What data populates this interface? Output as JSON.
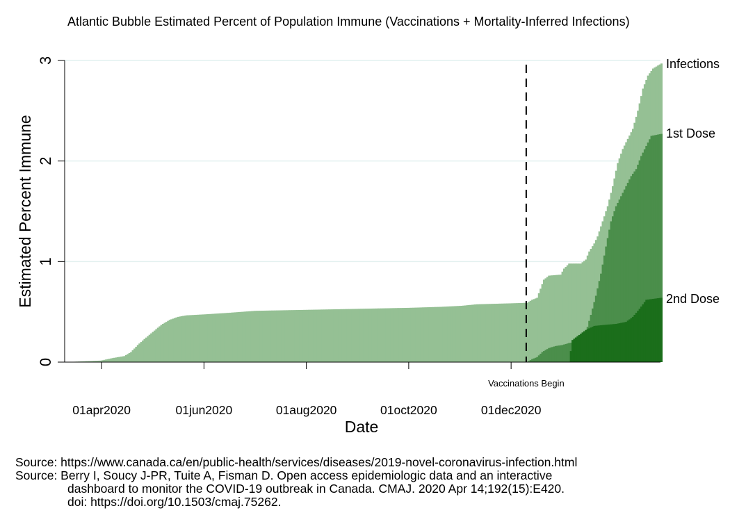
{
  "chart_data": {
    "type": "area",
    "title": "Atlantic Bubble Estimated Percent of Population Immune (Vaccinations + Mortality-Inferred Infections)",
    "xlabel": "Date",
    "ylabel": "Estimated Percent Immune",
    "x_ticks": [
      "2020-04-01",
      "2020-06-01",
      "2020-08-01",
      "2020-10-01",
      "2020-12-01"
    ],
    "x_tick_labels": [
      "01apr2020",
      "01jun2020",
      "01aug2020",
      "01oct2020",
      "01dec2020"
    ],
    "x_range": [
      "2020-03-10",
      "2021-02-28"
    ],
    "y_ticks": [
      0,
      1,
      2,
      3
    ],
    "ylim": [
      0,
      3
    ],
    "grid": true,
    "vertical_line": {
      "date": "2020-12-10",
      "style": "dashed",
      "label": "Vaccinations Begin"
    },
    "series": [
      {
        "name": "Infections",
        "color": "#95c094",
        "points": [
          [
            "2020-03-10",
            0
          ],
          [
            "2020-03-24",
            0.01
          ],
          [
            "2020-03-31",
            0.015
          ],
          [
            "2020-04-07",
            0.04
          ],
          [
            "2020-04-14",
            0.06
          ],
          [
            "2020-04-18",
            0.1
          ],
          [
            "2020-04-22",
            0.17
          ],
          [
            "2020-04-26",
            0.23
          ],
          [
            "2020-05-01",
            0.3
          ],
          [
            "2020-05-06",
            0.37
          ],
          [
            "2020-05-11",
            0.42
          ],
          [
            "2020-05-16",
            0.45
          ],
          [
            "2020-05-21",
            0.465
          ],
          [
            "2020-06-01",
            0.475
          ],
          [
            "2020-06-15",
            0.49
          ],
          [
            "2020-07-01",
            0.51
          ],
          [
            "2020-08-01",
            0.52
          ],
          [
            "2020-09-01",
            0.53
          ],
          [
            "2020-10-01",
            0.54
          ],
          [
            "2020-10-20",
            0.55
          ],
          [
            "2020-11-01",
            0.56
          ],
          [
            "2020-11-10",
            0.575
          ],
          [
            "2020-12-01",
            0.585
          ],
          [
            "2020-12-10",
            0.59
          ],
          [
            "2020-12-13",
            0.62
          ],
          [
            "2020-12-16",
            0.64
          ],
          [
            "2020-12-20",
            0.82
          ],
          [
            "2020-12-23",
            0.86
          ],
          [
            "2020-12-30",
            0.87
          ],
          [
            "2021-01-01",
            0.93
          ],
          [
            "2021-01-04",
            0.98
          ],
          [
            "2021-01-11",
            0.98
          ],
          [
            "2021-01-14",
            1.02
          ],
          [
            "2021-01-16",
            1.1
          ],
          [
            "2021-01-19",
            1.18
          ],
          [
            "2021-01-21",
            1.25
          ],
          [
            "2021-01-24",
            1.4
          ],
          [
            "2021-01-27",
            1.55
          ],
          [
            "2021-01-30",
            1.75
          ],
          [
            "2021-02-02",
            1.98
          ],
          [
            "2021-02-05",
            2.12
          ],
          [
            "2021-02-08",
            2.22
          ],
          [
            "2021-02-11",
            2.32
          ],
          [
            "2021-02-14",
            2.5
          ],
          [
            "2021-02-17",
            2.72
          ],
          [
            "2021-02-20",
            2.85
          ],
          [
            "2021-02-23",
            2.92
          ],
          [
            "2021-02-28",
            2.97
          ]
        ]
      },
      {
        "name": "1st Dose",
        "color": "#4b8e4b",
        "points": [
          [
            "2020-12-10",
            0
          ],
          [
            "2020-12-13",
            0.03
          ],
          [
            "2020-12-16",
            0.05
          ],
          [
            "2020-12-19",
            0.1
          ],
          [
            "2020-12-23",
            0.14
          ],
          [
            "2020-12-27",
            0.16
          ],
          [
            "2020-12-31",
            0.17
          ],
          [
            "2021-01-04",
            0.19
          ],
          [
            "2021-01-08",
            0.2
          ],
          [
            "2021-01-11",
            0.22
          ],
          [
            "2021-01-14",
            0.29
          ],
          [
            "2021-01-17",
            0.47
          ],
          [
            "2021-01-20",
            0.66
          ],
          [
            "2021-01-23",
            0.88
          ],
          [
            "2021-01-26",
            1.15
          ],
          [
            "2021-01-29",
            1.4
          ],
          [
            "2021-02-01",
            1.55
          ],
          [
            "2021-02-04",
            1.65
          ],
          [
            "2021-02-07",
            1.75
          ],
          [
            "2021-02-10",
            1.85
          ],
          [
            "2021-02-13",
            1.92
          ],
          [
            "2021-02-16",
            2.05
          ],
          [
            "2021-02-19",
            2.15
          ],
          [
            "2021-02-22",
            2.25
          ],
          [
            "2021-02-28",
            2.27
          ]
        ]
      },
      {
        "name": "2nd Dose",
        "color": "#1b6e1b",
        "points": [
          [
            "2021-01-04",
            0
          ],
          [
            "2021-01-06",
            0.22
          ],
          [
            "2021-01-10",
            0.27
          ],
          [
            "2021-01-14",
            0.32
          ],
          [
            "2021-01-19",
            0.36
          ],
          [
            "2021-01-25",
            0.37
          ],
          [
            "2021-02-01",
            0.38
          ],
          [
            "2021-02-07",
            0.4
          ],
          [
            "2021-02-11",
            0.45
          ],
          [
            "2021-02-15",
            0.53
          ],
          [
            "2021-02-19",
            0.62
          ],
          [
            "2021-02-28",
            0.64
          ]
        ]
      }
    ]
  },
  "sources": {
    "line1": "Source: https://www.canada.ca/en/public-health/services/diseases/2019-novel-coronavirus-infection.html",
    "line2": "Source: Berry I, Soucy J-PR, Tuite A, Fisman D. Open access epidemiologic data and an interactive",
    "line3": "dashboard to monitor the COVID-19 outbreak in Canada. CMAJ. 2020 Apr 14;192(15):E420.",
    "line4": "doi: https://doi.org/10.1503/cmaj.75262."
  }
}
